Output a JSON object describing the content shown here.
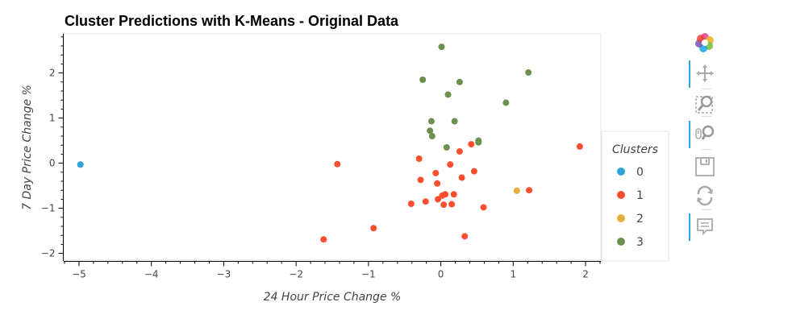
{
  "chart_data": {
    "type": "scatter",
    "title": "Cluster Predictions with K-Means - Original Data",
    "xlabel": "24 Hour Price Change %",
    "ylabel": "7 Day Price Change %",
    "xlim": [
      -5.2,
      2.2
    ],
    "ylim": [
      -2.15,
      2.85
    ],
    "x_ticks": [
      -5,
      -4,
      -3,
      -2,
      -1,
      0,
      1,
      2
    ],
    "x_tick_labels": [
      "−5",
      "−4",
      "−3",
      "−2",
      "−1",
      "0",
      "1",
      "2"
    ],
    "y_ticks": [
      -2,
      -1,
      0,
      1,
      2
    ],
    "y_tick_labels": [
      "−2",
      "−1",
      "0",
      "1",
      "2"
    ],
    "grid": false,
    "legend": {
      "title": "Clusters",
      "placement": "right"
    },
    "series": [
      {
        "name": "0",
        "color": "#30a2da",
        "points": [
          [
            -4.98,
            -0.03
          ]
        ]
      },
      {
        "name": "1",
        "color": "#fc4f30",
        "points": [
          [
            -1.62,
            -1.69
          ],
          [
            -1.43,
            -0.02
          ],
          [
            -0.93,
            -1.44
          ],
          [
            -0.41,
            -0.9
          ],
          [
            -0.3,
            0.1
          ],
          [
            -0.28,
            -0.37
          ],
          [
            -0.21,
            -0.85
          ],
          [
            -0.07,
            -0.22
          ],
          [
            -0.05,
            -0.45
          ],
          [
            -0.04,
            -0.8
          ],
          [
            0.02,
            -0.72
          ],
          [
            0.06,
            -0.69
          ],
          [
            0.04,
            -0.92
          ],
          [
            0.13,
            -0.03
          ],
          [
            0.15,
            -0.91
          ],
          [
            0.18,
            -0.69
          ],
          [
            0.26,
            0.26
          ],
          [
            0.29,
            -0.32
          ],
          [
            0.33,
            -1.62
          ],
          [
            0.42,
            0.42
          ],
          [
            0.46,
            -0.18
          ],
          [
            0.59,
            -0.98
          ],
          [
            1.22,
            -0.6
          ],
          [
            1.92,
            0.37
          ]
        ]
      },
      {
        "name": "2",
        "color": "#e5ae38",
        "points": [
          [
            1.05,
            -0.61
          ]
        ]
      },
      {
        "name": "3",
        "color": "#6d904f",
        "points": [
          [
            0.01,
            2.58
          ],
          [
            -0.25,
            1.85
          ],
          [
            0.26,
            1.8
          ],
          [
            0.1,
            1.52
          ],
          [
            1.21,
            2.01
          ],
          [
            0.9,
            1.34
          ],
          [
            -0.13,
            0.93
          ],
          [
            0.19,
            0.93
          ],
          [
            -0.15,
            0.72
          ],
          [
            -0.12,
            0.6
          ],
          [
            0.08,
            0.35
          ],
          [
            0.52,
            0.5
          ],
          [
            0.52,
            0.46
          ]
        ]
      }
    ]
  },
  "toolbar": {
    "tools": [
      "bokeh-logo-icon",
      "pan-icon",
      "box-zoom-icon",
      "wheel-zoom-icon",
      "save-icon",
      "reset-icon",
      "hover-icon"
    ]
  }
}
